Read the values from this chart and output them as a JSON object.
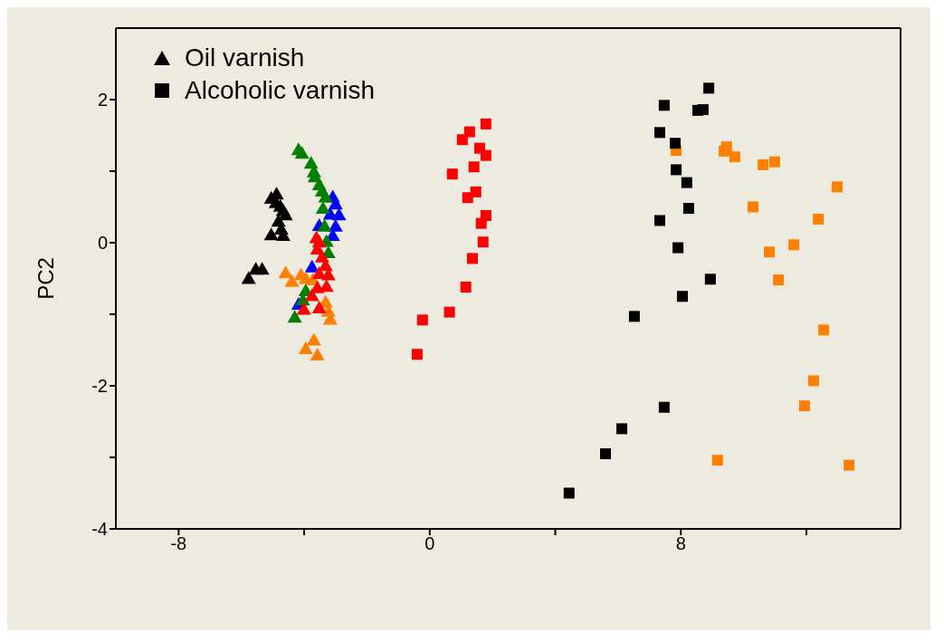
{
  "chart_data": {
    "type": "scatter",
    "ylabel": "PC2",
    "xlim": [
      -10,
      15
    ],
    "ylim": [
      -4,
      3
    ],
    "xticks": [
      -8,
      {
        "value": -4,
        "label": null
      },
      0,
      {
        "value": 4,
        "label": null
      },
      8,
      {
        "value": 12,
        "label": null
      }
    ],
    "yticks": [
      -4,
      {
        "value": -3,
        "label": null
      },
      -2,
      {
        "value": -1,
        "label": null
      },
      0,
      {
        "value": 1,
        "label": null
      },
      2
    ],
    "legend": "top left",
    "series": [
      {
        "name": "Oil varnish",
        "color": "#000000",
        "marker": "triangle",
        "x": [
          -4.88,
          -5.05,
          -4.9,
          -4.76,
          -4.67,
          -4.59,
          -4.82,
          -4.73,
          -5.05,
          -4.67,
          -5.34,
          -5.54,
          -5.77
        ],
        "values": [
          0.68,
          0.62,
          0.56,
          0.51,
          0.45,
          0.39,
          0.3,
          0.19,
          0.11,
          0.1,
          -0.37,
          -0.37,
          -0.5
        ]
      },
      {
        "color": "#0000ff",
        "marker": "triangle",
        "x": [
          -3.09,
          -3.0,
          -2.89,
          -3.17,
          -3.52,
          -3.0,
          -3.09,
          -3.75,
          -4.18
        ],
        "values": [
          0.64,
          0.54,
          0.39,
          0.4,
          0.24,
          0.23,
          0.1,
          -0.34,
          -0.86
        ]
      },
      {
        "color": "#008000",
        "marker": "triangle",
        "x": [
          -4.18,
          -4.07,
          -3.78,
          -3.69,
          -3.66,
          -3.52,
          -3.43,
          -3.32,
          -3.4,
          -3.35,
          -3.29,
          -3.23,
          -3.95,
          -4.04,
          -4.3
        ],
        "values": [
          1.3,
          1.25,
          1.11,
          0.99,
          0.92,
          0.81,
          0.72,
          0.64,
          0.48,
          0.23,
          0.02,
          -0.14,
          -0.67,
          -0.8,
          -1.04
        ]
      },
      {
        "color": "#ff8000",
        "marker": "triangle",
        "x": [
          -4.59,
          -4.1,
          -4.39,
          -3.95,
          -3.72,
          -3.32,
          -3.23,
          -3.17,
          -3.69,
          -3.95,
          -3.58
        ],
        "values": [
          -0.42,
          -0.45,
          -0.54,
          -0.5,
          -0.52,
          -0.83,
          -0.96,
          -1.07,
          -1.36,
          -1.48,
          -1.57
        ]
      },
      {
        "color": "#ff0000",
        "marker": "triangle",
        "x": [
          -3.61,
          -3.52,
          -3.58,
          -3.43,
          -3.32,
          -3.23,
          -3.52,
          -3.29,
          -3.58,
          -3.75,
          -3.52,
          -4.01
        ],
        "values": [
          0.07,
          0.01,
          -0.09,
          -0.2,
          -0.32,
          -0.45,
          -0.43,
          -0.61,
          -0.63,
          -0.74,
          -0.91,
          -0.93
        ]
      },
      {
        "color": "#ff0000",
        "marker": "square",
        "x": [
          1.79,
          1.27,
          1.04,
          1.59,
          1.79,
          1.41,
          0.72,
          1.47,
          1.21,
          1.79,
          1.64,
          1.7,
          1.36,
          1.15,
          0.63,
          -0.23,
          -0.4
        ],
        "values": [
          1.66,
          1.55,
          1.44,
          1.32,
          1.22,
          1.06,
          0.96,
          0.71,
          0.63,
          0.38,
          0.27,
          0.01,
          -0.22,
          -0.62,
          -0.97,
          -1.08,
          -1.56
        ]
      },
      {
        "color": "#ff8000",
        "marker": "square",
        "x": [
          7.85,
          9.46,
          9.38,
          9.72,
          10.62,
          10.99,
          12.98,
          10.3,
          12.38,
          11.6,
          10.82,
          11.11,
          12.55,
          12.23,
          11.94,
          9.17,
          13.36
        ],
        "values": [
          1.29,
          1.34,
          1.28,
          1.2,
          1.09,
          1.13,
          0.78,
          0.5,
          0.33,
          -0.03,
          -0.13,
          -0.52,
          -1.22,
          -1.93,
          -2.28,
          -3.04,
          -3.11
        ]
      },
      {
        "name": "Alcoholic varnish",
        "color": "#000000",
        "marker": "square",
        "x": [
          8.89,
          7.47,
          8.54,
          8.71,
          7.33,
          7.82,
          7.85,
          8.19,
          8.25,
          7.33,
          7.91,
          8.94,
          8.05,
          6.52,
          7.47,
          6.12,
          5.6,
          4.44
        ],
        "values": [
          2.16,
          1.92,
          1.85,
          1.86,
          1.54,
          1.39,
          1.02,
          0.84,
          0.48,
          0.31,
          -0.07,
          -0.51,
          -0.75,
          -1.03,
          -2.3,
          -2.6,
          -2.95,
          -3.5
        ]
      }
    ]
  }
}
